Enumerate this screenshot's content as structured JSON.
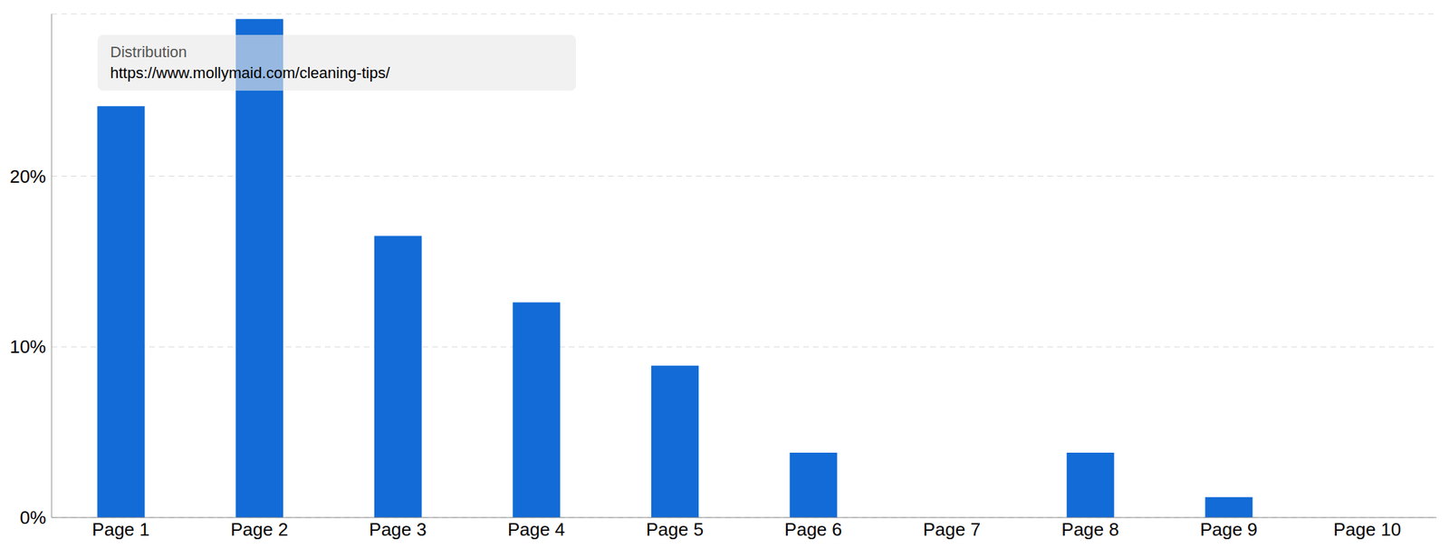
{
  "chart_data": {
    "type": "bar",
    "title": "Distribution",
    "subtitle": "https://www.mollymaid.com/cleaning-tips/",
    "categories": [
      "Page 1",
      "Page 2",
      "Page 3",
      "Page 4",
      "Page 5",
      "Page 6",
      "Page 7",
      "Page 8",
      "Page 9",
      "Page 10"
    ],
    "values": [
      24.1,
      29.2,
      16.5,
      12.6,
      8.9,
      3.8,
      0,
      3.8,
      1.2,
      0
    ],
    "color": "#126bd6",
    "ylim": [
      0,
      29.5
    ],
    "yticks": [
      {
        "value": 0,
        "label": "0%"
      },
      {
        "value": 10,
        "label": "10%"
      },
      {
        "value": 20,
        "label": "20%"
      }
    ],
    "grid": true
  }
}
